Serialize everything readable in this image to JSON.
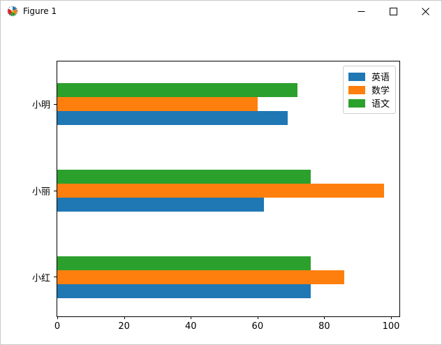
{
  "window": {
    "title": "Figure 1",
    "icon": "matplotlib-logo",
    "controls": {
      "minimize": "minimize",
      "maximize": "maximize",
      "close": "close"
    }
  },
  "chart_data": {
    "type": "bar",
    "orientation": "horizontal",
    "title": "",
    "xlabel": "",
    "ylabel": "",
    "categories_top_to_bottom": [
      "小明",
      "小丽",
      "小红"
    ],
    "series": [
      {
        "name": "英语",
        "color": "#1f77b4",
        "values": [
          69,
          62,
          76
        ]
      },
      {
        "name": "数学",
        "color": "#ff7f0e",
        "values": [
          60,
          98,
          86
        ]
      },
      {
        "name": "语文",
        "color": "#2ca02c",
        "values": [
          72,
          76,
          76
        ]
      }
    ],
    "xticks": [
      0,
      20,
      40,
      60,
      80,
      100
    ],
    "xlim": [
      0,
      102.5
    ],
    "grid": false,
    "legend": {
      "position": "upper right",
      "entries_top_to_bottom": [
        "英语",
        "数学",
        "语文"
      ]
    }
  }
}
